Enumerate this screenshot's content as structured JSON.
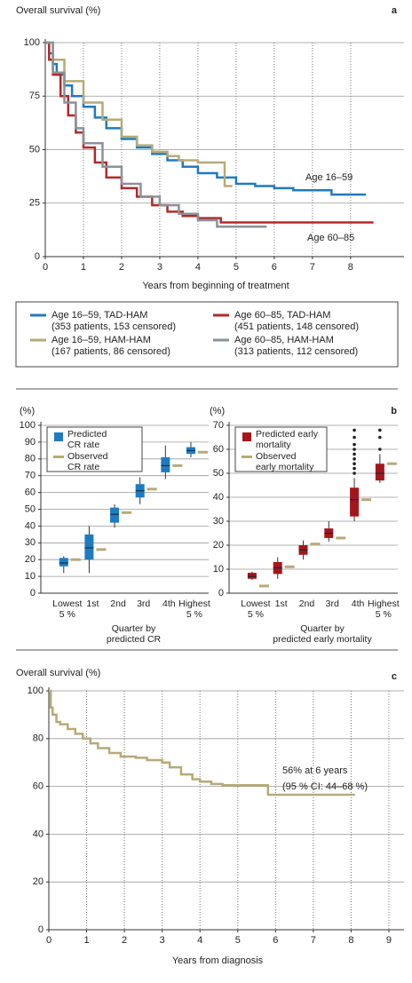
{
  "chart_data": [
    {
      "type": "step",
      "panel": "a",
      "y_label": "Overall survival (%)",
      "x_label": "Years from beginning of treatment",
      "xlim": [
        0,
        9.4
      ],
      "ylim": [
        0,
        100
      ],
      "xticks": [
        0,
        1,
        2,
        3,
        4,
        5,
        6,
        7,
        8
      ],
      "yticks": [
        0,
        25,
        50,
        75,
        100
      ],
      "grid": true,
      "annotations": [
        "Age 16–59",
        "Age 60–85"
      ],
      "series": [
        {
          "name": "Age 16–59, TAD-HAM",
          "detail": "(353 patients, 153 censored)",
          "color": "#1f7bbf",
          "x": [
            0,
            0.1,
            0.2,
            0.3,
            0.5,
            0.7,
            1.0,
            1.3,
            1.6,
            2.0,
            2.4,
            2.8,
            3.2,
            3.6,
            4.0,
            4.5,
            5.0,
            5.5,
            6.0,
            6.5,
            7.5,
            8.4
          ],
          "values": [
            100,
            95,
            90,
            85,
            80,
            75,
            70,
            65,
            60,
            55,
            51,
            48,
            45,
            42,
            39,
            37,
            34,
            33,
            32,
            31,
            29,
            29
          ]
        },
        {
          "name": "Age 60–85, TAD-HAM",
          "detail": "(451 patients, 148 censored)",
          "color": "#b02a2a",
          "x": [
            0,
            0.1,
            0.2,
            0.4,
            0.6,
            0.8,
            1.0,
            1.3,
            1.6,
            2.0,
            2.4,
            2.8,
            3.2,
            3.6,
            4.0,
            4.6,
            8.6
          ],
          "values": [
            100,
            92,
            85,
            75,
            66,
            58,
            51,
            44,
            37,
            32,
            28,
            24,
            21,
            19,
            18,
            16,
            16
          ]
        },
        {
          "name": "Age 16–59, HAM-HAM",
          "detail": "(167 patients, 86 censored)",
          "color": "#b5aa78",
          "x": [
            0,
            0.2,
            0.5,
            1.0,
            1.5,
            2.0,
            2.4,
            2.8,
            3.2,
            3.5,
            4.0,
            4.7,
            4.9
          ],
          "values": [
            100,
            92,
            82,
            72,
            64,
            56,
            52,
            49,
            47,
            45,
            44,
            33,
            33
          ]
        },
        {
          "name": "Age 60–85, HAM-HAM",
          "detail": "(313 patients, 112 censored)",
          "color": "#8a9299",
          "x": [
            0,
            0.2,
            0.5,
            0.8,
            1.0,
            1.5,
            2.0,
            2.5,
            3.0,
            3.5,
            4.0,
            4.5,
            5.8
          ],
          "values": [
            100,
            86,
            72,
            60,
            53,
            42,
            34,
            28,
            24,
            20,
            17,
            14,
            14
          ]
        }
      ]
    },
    {
      "type": "box",
      "y_label": "(%)",
      "x_label": [
        "Quarter by",
        "predicted CR"
      ],
      "categories": [
        "Lowest 5 %",
        "1st",
        "2nd",
        "3rd",
        "4th",
        "Highest 5 %"
      ],
      "ylim": [
        0,
        100
      ],
      "yticks": [
        0,
        10,
        20,
        30,
        40,
        50,
        60,
        70,
        80,
        90,
        100
      ],
      "grid": true,
      "series": [
        {
          "name": "Predicted CR rate",
          "color": "#1f7bbf",
          "whisker_low": [
            12,
            12,
            39,
            53,
            68,
            81
          ],
          "q1": [
            16,
            20,
            42,
            57,
            72,
            83
          ],
          "median": [
            18,
            27,
            47,
            61,
            76,
            85
          ],
          "q3": [
            21,
            35,
            51,
            65,
            81,
            87
          ],
          "whisker_high": [
            22,
            40,
            53,
            69,
            88,
            90
          ],
          "outliers": [
            [],
            [],
            [],
            [],
            [],
            []
          ]
        },
        {
          "name": "Observed CR rate",
          "color": "#b5aa78",
          "values": [
            20,
            26,
            48,
            62,
            76,
            84
          ]
        }
      ]
    },
    {
      "type": "box",
      "panel": "b",
      "y_label": "(%)",
      "x_label": [
        "Quarter by",
        "predicted early mortality"
      ],
      "categories": [
        "Lowest 5 %",
        "1st",
        "2nd",
        "3rd",
        "4th",
        "Highest 5 %"
      ],
      "ylim": [
        0,
        70
      ],
      "yticks": [
        0,
        10,
        20,
        30,
        40,
        50,
        60,
        70
      ],
      "grid": true,
      "series": [
        {
          "name": "Predicted early mortality",
          "color": "#a3171c",
          "whisker_low": [
            5.5,
            6,
            14,
            21.5,
            30,
            46
          ],
          "q1": [
            6,
            8,
            16,
            23,
            32,
            47
          ],
          "median": [
            7,
            10.5,
            18,
            25,
            39,
            50
          ],
          "q3": [
            8.5,
            13,
            20,
            27,
            44,
            54
          ],
          "whisker_high": [
            9,
            15,
            22,
            30,
            48,
            58
          ],
          "outliers": [
            [],
            [],
            [],
            [],
            [
              50,
              52,
              54,
              56,
              58,
              60,
              62,
              65,
              68
            ],
            [
              60,
              65,
              68
            ]
          ]
        },
        {
          "name": "Observed early mortality",
          "color": "#b5aa78",
          "values": [
            3,
            11,
            20.5,
            23,
            39,
            54
          ]
        }
      ]
    },
    {
      "type": "step",
      "panel": "c",
      "y_label": "Overall survival (%)",
      "x_label": "Years from diagnosis",
      "xlim": [
        0,
        9.4
      ],
      "ylim": [
        0,
        100
      ],
      "xticks": [
        0,
        1,
        2,
        3,
        4,
        5,
        6,
        7,
        8,
        9
      ],
      "yticks": [
        0,
        20,
        40,
        60,
        80,
        100
      ],
      "grid": true,
      "annotations": [
        "56% at 6 years",
        "(95 % CI: 44–68 %)"
      ],
      "series": [
        {
          "color": "#b5aa78",
          "x": [
            0,
            0.05,
            0.1,
            0.2,
            0.3,
            0.5,
            0.7,
            0.9,
            1.1,
            1.3,
            1.6,
            1.9,
            2.3,
            2.6,
            3.0,
            3.2,
            3.5,
            3.8,
            4.0,
            4.3,
            4.6,
            5.8,
            8.1
          ],
          "values": [
            100,
            93,
            90,
            87,
            86,
            84,
            82,
            80,
            78,
            76,
            74,
            72.5,
            72,
            71,
            70,
            68,
            65,
            63,
            62,
            61,
            60.5,
            56.5,
            56.5
          ]
        }
      ]
    }
  ]
}
